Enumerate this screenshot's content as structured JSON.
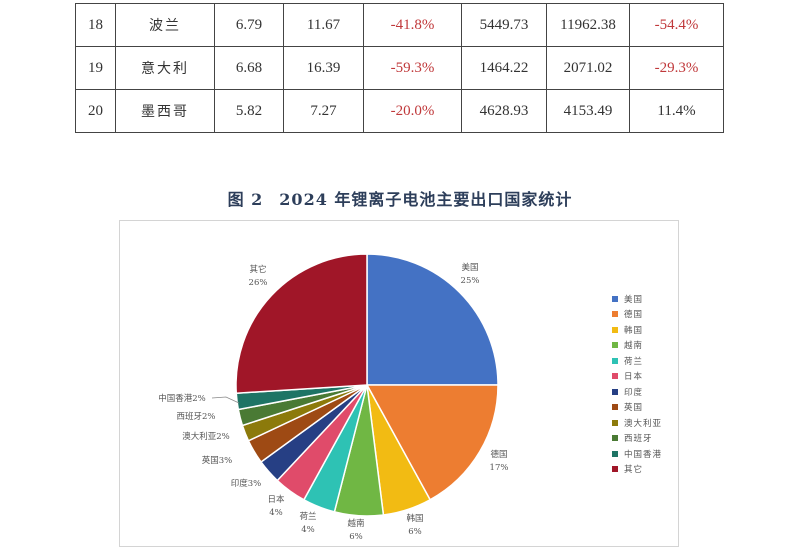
{
  "table": {
    "rows": [
      {
        "rank": "18",
        "country": "波兰",
        "v1": "6.79",
        "v2": "11.67",
        "c1": "-41.8%",
        "c1_neg": true,
        "v3": "5449.73",
        "v4": "11962.38",
        "c2": "-54.4%",
        "c2_neg": true
      },
      {
        "rank": "19",
        "country": "意大利",
        "v1": "6.68",
        "v2": "16.39",
        "c1": "-59.3%",
        "c1_neg": true,
        "v3": "1464.22",
        "v4": "2071.02",
        "c2": "-29.3%",
        "c2_neg": true
      },
      {
        "rank": "20",
        "country": "墨西哥",
        "v1": "5.82",
        "v2": "7.27",
        "c1": "-20.0%",
        "c1_neg": true,
        "v3": "4628.93",
        "v4": "4153.49",
        "c2": "11.4%",
        "c2_neg": false
      }
    ]
  },
  "figure": {
    "number": "图 2",
    "title": "2024 年锂离子电池主要出口国家统计"
  },
  "chart_data": {
    "type": "pie",
    "title": "2024 年锂离子电池主要出口国家统计",
    "start_angle": "12 o'clock, clockwise",
    "legend_position": "right",
    "categories": [
      "美国",
      "德国",
      "韩国",
      "越南",
      "荷兰",
      "日本",
      "印度",
      "英国",
      "澳大利亚",
      "西班牙",
      "中国香港",
      "其它"
    ],
    "values": [
      25,
      17,
      6,
      6,
      4,
      4,
      3,
      3,
      2,
      2,
      2,
      26
    ],
    "unit": "%",
    "colors": [
      "#4472c4",
      "#ed7d31",
      "#f2bb13",
      "#70b744",
      "#2ec2b4",
      "#e04b6a",
      "#263f84",
      "#9e4a14",
      "#8c7a0b",
      "#4a7a34",
      "#1e7465",
      "#a01628"
    ],
    "labels": [
      {
        "name": "美国",
        "pct": "25%"
      },
      {
        "name": "德国",
        "pct": "17%"
      },
      {
        "name": "韩国",
        "pct": "6%"
      },
      {
        "name": "越南",
        "pct": "6%"
      },
      {
        "name": "荷兰",
        "pct": "4%"
      },
      {
        "name": "日本",
        "pct": "4%"
      },
      {
        "name": "印度",
        "pct": "3%"
      },
      {
        "name": "英国",
        "pct": "3%"
      },
      {
        "name": "澳大利亚",
        "pct": "2%"
      },
      {
        "name": "西班牙",
        "pct": "2%"
      },
      {
        "name": "中国香港",
        "pct": "2%"
      },
      {
        "name": "其它",
        "pct": "26%"
      }
    ]
  }
}
